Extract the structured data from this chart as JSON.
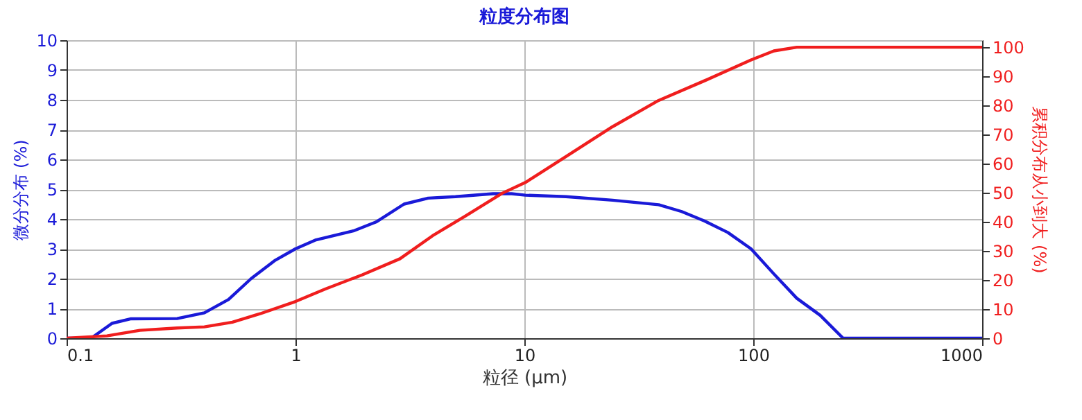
{
  "chart_data": {
    "type": "line",
    "title": "粒度分布图",
    "xlabel": "粒径 (μm)",
    "ylabel": "微分分布 (%)",
    "y2label": "累积分布从小到大 (%)",
    "log": "x",
    "grid": true,
    "xlim": [
      0.1,
      1000
    ],
    "xticks": [
      0.1,
      1,
      10,
      100,
      1000
    ],
    "ylim": [
      0,
      10
    ],
    "yticks": [
      0,
      1,
      2,
      3,
      4,
      5,
      6,
      7,
      8,
      9,
      10
    ],
    "y2lim": [
      0,
      102.4
    ],
    "y2ticks": [
      0,
      10,
      20,
      30,
      40,
      50,
      60,
      70,
      80,
      90,
      100
    ],
    "series": [
      {
        "color": "#1a1ad8",
        "x": [
          0.1,
          0.128,
          0.158,
          0.19,
          0.304,
          0.4,
          0.51,
          0.64,
          0.81,
          1.0,
          1.23,
          1.79,
          2.25,
          2.98,
          3.8,
          5.0,
          7.3,
          8.8,
          10.1,
          15.2,
          24.3,
          38.6,
          48.7,
          61.4,
          77.4,
          97.8,
          123,
          155,
          196,
          247,
          1000
        ],
        "values": [
          0,
          0,
          0.5,
          0.65,
          0.66,
          0.85,
          1.3,
          2.0,
          2.6,
          3.0,
          3.3,
          3.6,
          3.9,
          4.5,
          4.7,
          4.75,
          4.85,
          4.85,
          4.8,
          4.75,
          4.63,
          4.48,
          4.25,
          3.93,
          3.55,
          3.0,
          2.16,
          1.34,
          0.77,
          0,
          0
        ]
      },
      {
        "color": "#f01e1e",
        "axis": "y2",
        "x": [
          0.1,
          0.15,
          0.209,
          0.304,
          0.4,
          0.53,
          0.7,
          1.0,
          1.35,
          1.96,
          2.86,
          3.97,
          5.5,
          8.0,
          10.1,
          15.2,
          24.3,
          38.6,
          61.4,
          97.8,
          123,
          155,
          247,
          1000
        ],
        "values": [
          0,
          0.8,
          2.7,
          3.5,
          3.9,
          5.5,
          8.4,
          12.6,
          16.9,
          21.8,
          27.3,
          35.2,
          41.9,
          49.8,
          53.5,
          62.4,
          72.7,
          81.7,
          88.5,
          95.6,
          98.7,
          100,
          100,
          100
        ]
      }
    ]
  }
}
